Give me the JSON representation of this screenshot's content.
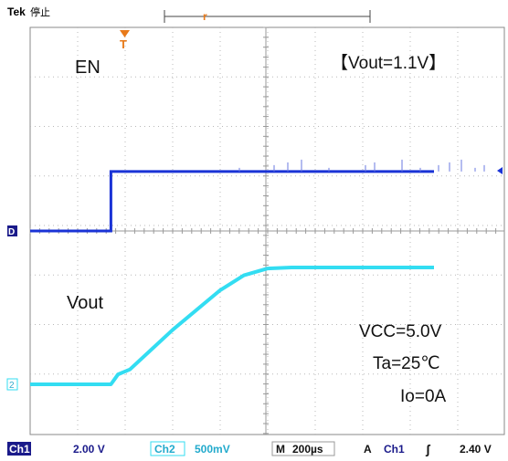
{
  "header": {
    "brand": "Tek",
    "state": "停止"
  },
  "trigger": {
    "marker": "T",
    "position_marker": "r"
  },
  "channels": {
    "ch1": {
      "label": "EN",
      "ground_marker": "D",
      "color": "#1a33d6",
      "volts_per_div": "2.00 V"
    },
    "ch2": {
      "label": "Vout",
      "ground_marker": "2",
      "color": "#33ddf2",
      "volts_per_div": "500mV"
    }
  },
  "annotations": {
    "condition": "【Vout=1.1V】",
    "vcc": "VCC=5.0V",
    "ta": "Ta=25℃",
    "io": "Io=0A"
  },
  "status_bar": {
    "ch1_tag": "Ch1",
    "ch1_scale": "2.00 V",
    "ch2_tag": "Ch2",
    "ch2_scale": "500mV",
    "timebase_tag": "M",
    "timebase": "200µs",
    "trigger_tag": "A",
    "trigger_source": "Ch1",
    "trigger_slope": "ʃ",
    "trigger_level": "2.40 V"
  },
  "chart_data": {
    "type": "line",
    "x_unit": "µs",
    "x_per_div": 200,
    "grid": true,
    "series": [
      {
        "name": "EN",
        "x": [
          0,
          340,
          340,
          1700
        ],
        "y": [
          0,
          0,
          2.4,
          2.4
        ]
      },
      {
        "name": "Vout",
        "x": [
          0,
          340,
          370,
          420,
          600,
          800,
          900,
          1000,
          1100,
          1200,
          1700
        ],
        "y": [
          0,
          0,
          0.1,
          0.15,
          0.55,
          0.95,
          1.1,
          1.17,
          1.18,
          1.18,
          1.18
        ]
      }
    ]
  }
}
